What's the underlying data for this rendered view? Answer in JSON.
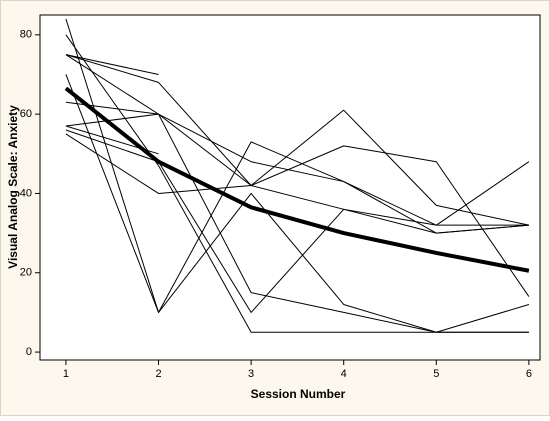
{
  "chart_data": {
    "type": "line",
    "x": [
      1,
      2,
      3,
      4,
      5,
      6
    ],
    "xlabel": "Session Number",
    "ylabel": "Visual Analog Scale: Anxiety",
    "xlim": [
      0.72,
      6.12
    ],
    "xticks": [
      1,
      2,
      3,
      4,
      5,
      6
    ],
    "ylim": [
      -2,
      85
    ],
    "yticks": [
      0,
      20,
      40,
      60,
      80
    ],
    "grid": false,
    "series": [
      {
        "color": "#000000",
        "linewidth": 1,
        "values": [
          84,
          10,
          53,
          43,
          32,
          48
        ]
      },
      {
        "color": "#000000",
        "linewidth": 1,
        "values": [
          75,
          70,
          null,
          null,
          null,
          null
        ]
      },
      {
        "color": "#000000",
        "linewidth": 1,
        "values": [
          75,
          68,
          42,
          61,
          37,
          32
        ]
      },
      {
        "color": "#000000",
        "linewidth": 1,
        "values": [
          70,
          10,
          40,
          12,
          5,
          12
        ]
      },
      {
        "color": "#000000",
        "linewidth": 1,
        "values": [
          63,
          60,
          48,
          43,
          30,
          32
        ]
      },
      {
        "color": "#000000",
        "linewidth": 1,
        "values": [
          57,
          60,
          42,
          52,
          48,
          14
        ]
      },
      {
        "color": "#000000",
        "linewidth": 1,
        "values": [
          57,
          50,
          null,
          null,
          null,
          null
        ]
      },
      {
        "color": "#000000",
        "linewidth": 1,
        "values": [
          55,
          40,
          42,
          36,
          32,
          32
        ]
      },
      {
        "color": "#000000",
        "linewidth": 1,
        "values": [
          80,
          47,
          5,
          5,
          5,
          5
        ]
      },
      {
        "color": "#000000",
        "linewidth": 1,
        "values": [
          75,
          60,
          15,
          10,
          5,
          5
        ]
      },
      {
        "color": "#000000",
        "linewidth": 1,
        "values": [
          56,
          48,
          10,
          36,
          30,
          32
        ]
      },
      {
        "color": "#000000",
        "linewidth": 4,
        "values": [
          66.5,
          48,
          36.5,
          30,
          25,
          20.5
        ]
      }
    ]
  }
}
